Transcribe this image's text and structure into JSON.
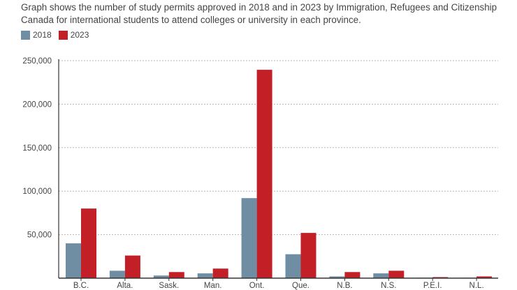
{
  "caption": "Graph shows the number of study permits approved in 2018 and in 2023 by Immigration, Refugees and Citizenship Canada for international students to attend colleges or university in each province.",
  "colors": {
    "series_2018": "#6f8ea3",
    "series_2023": "#c21f26",
    "grid": "#b5b5b5",
    "axis": "#333333"
  },
  "chart_data": {
    "type": "bar",
    "title": "",
    "xlabel": "",
    "ylabel": "",
    "ylim": [
      0,
      250000
    ],
    "yticks": [
      50000,
      100000,
      150000,
      200000,
      250000
    ],
    "ytick_labels": [
      "50,000",
      "100,000",
      "150,000",
      "200,000",
      "250,000"
    ],
    "grid": true,
    "legend": "top-left",
    "categories": [
      "B.C.",
      "Alta.",
      "Sask.",
      "Man.",
      "Ont.",
      "Que.",
      "N.B.",
      "N.S.",
      "P.E.I.",
      "N.L."
    ],
    "series": [
      {
        "name": "2018",
        "values": [
          40000,
          8500,
          3000,
          5500,
          92000,
          27500,
          2000,
          5500,
          500,
          500
        ]
      },
      {
        "name": "2023",
        "values": [
          80000,
          26000,
          7000,
          11000,
          239500,
          52000,
          7000,
          8500,
          1200,
          2000
        ]
      }
    ]
  }
}
